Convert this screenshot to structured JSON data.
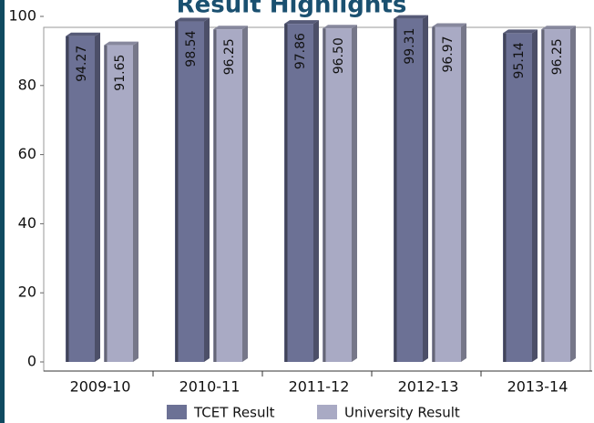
{
  "chart_data": {
    "type": "bar3d",
    "title": "Result Highlights",
    "categories": [
      "2009-10",
      "2010-11",
      "2011-12",
      "2012-13",
      "2013-14"
    ],
    "series": [
      {
        "name": "TCET Result",
        "color": "#6c7195",
        "values": [
          94.27,
          98.54,
          97.86,
          99.31,
          95.14
        ],
        "value_labels": [
          "94.27",
          "98.54",
          "97.86",
          "99.31",
          "95.14"
        ]
      },
      {
        "name": "University Result",
        "color": "#a9aac4",
        "values": [
          91.65,
          96.25,
          96.5,
          96.97,
          96.25
        ],
        "value_labels": [
          "91.65",
          "96.25",
          "96.50",
          "96.97",
          "96.25"
        ]
      }
    ],
    "ylim": [
      0,
      100
    ],
    "yticks": [
      0,
      20,
      40,
      60,
      80,
      100
    ]
  }
}
